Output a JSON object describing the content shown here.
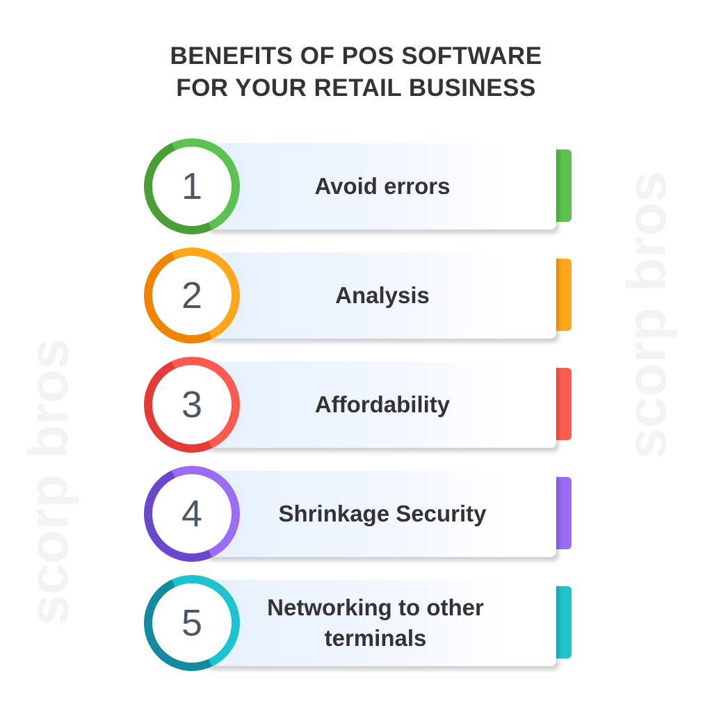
{
  "title": {
    "line1": "BENEFITS OF POS SOFTWARE",
    "line2": "FOR YOUR RETAIL BUSINESS"
  },
  "watermark": "scorp bros",
  "items": [
    {
      "number": "1",
      "label": "Avoid errors",
      "color": "#5bc24f",
      "dark": "#4a9e35"
    },
    {
      "number": "2",
      "label": "Analysis",
      "color": "#ffa61a",
      "dark": "#f08400"
    },
    {
      "number": "3",
      "label": "Affordability",
      "color": "#ff5a50",
      "dark": "#e53b36"
    },
    {
      "number": "4",
      "label": "Shrinkage Security",
      "color": "#9b6cf5",
      "dark": "#6a48cc"
    },
    {
      "number": "5",
      "label": "Networking to other terminals",
      "color": "#1ec3d0",
      "dark": "#128aa0"
    }
  ]
}
